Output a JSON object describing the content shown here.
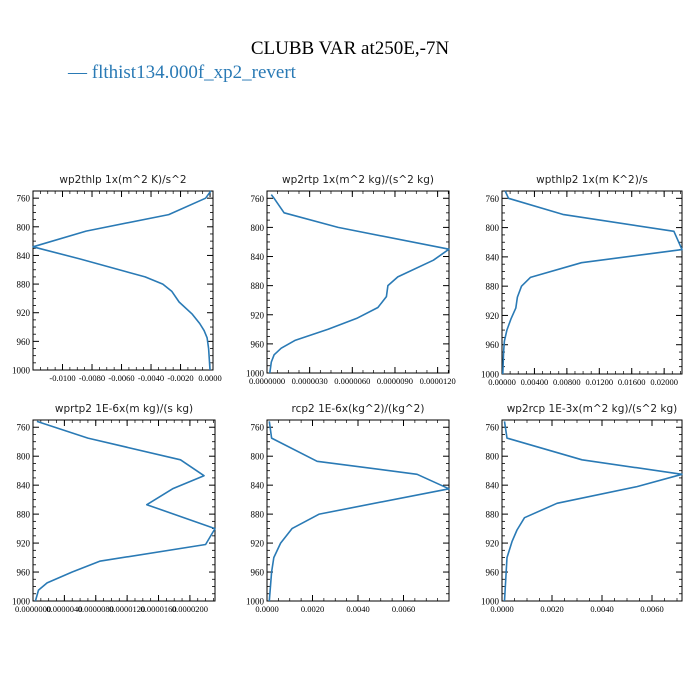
{
  "title": "CLUBB VAR at250E,-7N",
  "legend": {
    "label": "— flthist134.000f_xp2_revert",
    "color": "#2a7ab5"
  },
  "line_color": "#2a7ab5",
  "chart_data": [
    {
      "type": "line",
      "title": "wp2thlp  1x(m^2 K)/s^2",
      "xlim": [
        -0.012,
        0.0002
      ],
      "ylim": [
        1000,
        750
      ],
      "xticks": [
        -0.01,
        -0.008,
        -0.006,
        -0.004,
        -0.002,
        0.0
      ],
      "xtick_labels": [
        "-0.0100",
        "-0.0080",
        "-0.0060",
        "-0.0040",
        "-0.0020",
        "0.0000"
      ],
      "yticks": [
        760,
        800,
        840,
        880,
        920,
        960,
        1000
      ],
      "series": [
        {
          "x": [
            5e-05,
            -0.0003,
            -0.0028,
            -0.0084,
            -0.012,
            -0.0088,
            -0.0044,
            -0.0032,
            -0.0026,
            -0.0021,
            -0.0012,
            -0.0007,
            -0.0004,
            -0.0002,
            -0.0001,
            0.0
          ],
          "y": [
            750,
            760,
            783,
            806,
            828,
            845,
            870,
            880,
            890,
            905,
            922,
            935,
            945,
            955,
            970,
            1000
          ]
        }
      ]
    },
    {
      "type": "line",
      "title": "wp2rtp  1x(m^2 kg)/(s^2 kg)",
      "xlim": [
        0.0,
        1.28e-05
      ],
      "ylim": [
        1000,
        750
      ],
      "xticks": [
        0.0,
        3e-06,
        6e-06,
        9e-06,
        1.2e-05
      ],
      "xtick_labels": [
        "0.0000000",
        "0.0000030",
        "0.0000060",
        "0.0000090",
        "0.0000120"
      ],
      "yticks": [
        760,
        800,
        840,
        880,
        920,
        960,
        1000
      ],
      "series": [
        {
          "x": [
            3e-07,
            5e-07,
            1.2e-06,
            5e-06,
            1.28e-05,
            1.17e-05,
            9.2e-06,
            8.5e-06,
            8.4e-06,
            7.8e-06,
            6.3e-06,
            4.3e-06,
            2e-06,
            1e-06,
            5e-07,
            3e-07,
            2e-07
          ],
          "y": [
            755,
            760,
            780,
            800,
            830,
            845,
            868,
            880,
            895,
            910,
            925,
            940,
            955,
            966,
            975,
            985,
            1000
          ]
        }
      ]
    },
    {
      "type": "line",
      "title": "wpthlp2  1x(m K^2)/s",
      "xlim": [
        0.0,
        0.0222
      ],
      "ylim": [
        1000,
        750
      ],
      "xticks": [
        0.0,
        0.004,
        0.008,
        0.012,
        0.016,
        0.02
      ],
      "xtick_labels": [
        "0.00000",
        "0.00400",
        "0.00800",
        "0.01200",
        "0.01600",
        "0.02000"
      ],
      "yticks": [
        760,
        800,
        840,
        880,
        920,
        960,
        1000
      ],
      "series": [
        {
          "x": [
            0.0004,
            0.0008,
            0.0075,
            0.0212,
            0.0222,
            0.0098,
            0.0035,
            0.0024,
            0.0019,
            0.0017,
            0.0011,
            0.0006,
            0.0003,
            0.0002,
            0.0001
          ],
          "y": [
            750,
            760,
            782,
            805,
            830,
            848,
            868,
            880,
            895,
            910,
            925,
            940,
            955,
            970,
            1000
          ]
        }
      ]
    },
    {
      "type": "line",
      "title": "wprtp2  1E-6x(m kg)/(s kg)",
      "xlim": [
        0.0,
        2.32e-05
      ],
      "ylim": [
        1000,
        750
      ],
      "xticks": [
        0.0,
        4e-06,
        8e-06,
        1.2e-05,
        1.6e-05,
        2e-05
      ],
      "xtick_labels": [
        "0.0000000",
        "0.0000040",
        "0.0000080",
        "0.0000120",
        "0.0000160",
        "0.0000200"
      ],
      "yticks": [
        760,
        800,
        840,
        880,
        920,
        960,
        1000
      ],
      "series": [
        {
          "x": [
            5e-07,
            7e-06,
            1.88e-05,
            2.18e-05,
            1.78e-05,
            1.45e-05,
            2.32e-05,
            2.2e-05,
            8.5e-06,
            5e-06,
            1.8e-06,
            7e-07,
            3e-07
          ],
          "y": [
            752,
            775,
            805,
            827,
            845,
            867,
            900,
            922,
            945,
            960,
            975,
            985,
            1000
          ]
        }
      ]
    },
    {
      "type": "line",
      "title": "rcp2  1E-6x(kg^2)/(kg^2)",
      "xlim": [
        0.0,
        0.008
      ],
      "ylim": [
        1000,
        750
      ],
      "xticks": [
        0.0,
        0.002,
        0.004,
        0.006
      ],
      "xtick_labels": [
        "0.0000",
        "0.0020",
        "0.0040",
        "0.0060"
      ],
      "yticks": [
        760,
        800,
        840,
        880,
        920,
        960,
        1000
      ],
      "series": [
        {
          "x": [
            0.0001,
            0.0002,
            0.0022,
            0.0066,
            0.008,
            0.0023,
            0.0011,
            0.0006,
            0.0003,
            0.0002,
            0.0001
          ],
          "y": [
            752,
            775,
            807,
            825,
            845,
            880,
            900,
            920,
            940,
            960,
            1000
          ]
        }
      ]
    },
    {
      "type": "line",
      "title": "wp2rcp  1E-3x(m^2 kg)/(s^2 kg)",
      "xlim": [
        0.0,
        0.0072
      ],
      "ylim": [
        1000,
        750
      ],
      "xticks": [
        0.0,
        0.002,
        0.004,
        0.006
      ],
      "xtick_labels": [
        "0.0000",
        "0.0020",
        "0.0040",
        "0.0060"
      ],
      "yticks": [
        760,
        800,
        840,
        880,
        920,
        960,
        1000
      ],
      "series": [
        {
          "x": [
            0.0001,
            0.0002,
            0.0032,
            0.0072,
            0.0054,
            0.0022,
            0.0009,
            0.0006,
            0.0004,
            0.0002,
            0.0001
          ],
          "y": [
            752,
            775,
            805,
            825,
            842,
            865,
            885,
            902,
            918,
            940,
            1000
          ]
        }
      ]
    }
  ]
}
